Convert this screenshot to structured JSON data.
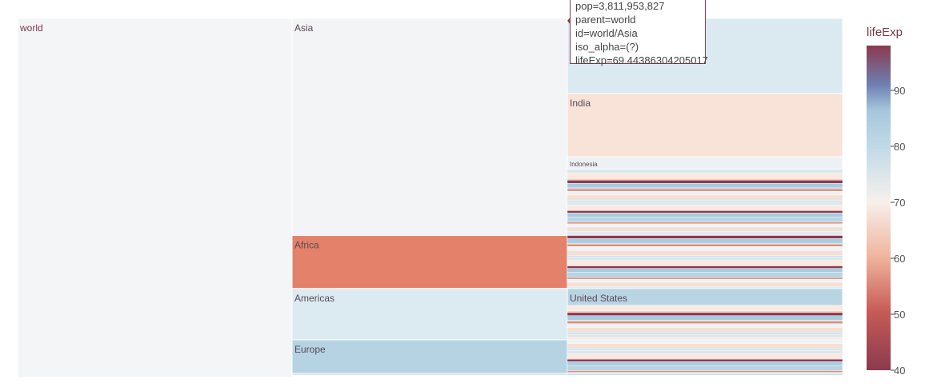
{
  "chart_data": {
    "type": "icicle",
    "color_by": "lifeExp",
    "colorscale": [
      "#8b3a4e",
      "#c9634f",
      "#f3c2ad",
      "#f4f1ef",
      "#d8e7ee",
      "#a3c8dc",
      "#6b7fb0",
      "#8b3a4e"
    ],
    "nodes": [
      {
        "id": "world",
        "label": "world",
        "value": 6.3,
        "lifeExp": 68.9,
        "color": "#f4f5f7"
      },
      {
        "id": "world/Asia",
        "label": "Asia",
        "parent": "world",
        "value": 3.81,
        "lifeExp": 69.4,
        "color": "#f2f4f6"
      },
      {
        "id": "world/Africa",
        "label": "Africa",
        "parent": "world",
        "value": 0.93,
        "lifeExp": 54.8,
        "color": "#e3816a"
      },
      {
        "id": "world/Americas",
        "label": "Americas",
        "parent": "world",
        "value": 0.9,
        "lifeExp": 75.4,
        "color": "#dceaf1"
      },
      {
        "id": "world/Europe",
        "label": "Europe",
        "parent": "world",
        "value": 0.59,
        "lifeExp": 77.6,
        "color": "#b5d3e3"
      },
      {
        "id": "world/Oceania",
        "label": "",
        "parent": "world",
        "value": 0.03,
        "lifeExp": 80.7,
        "color": "#c4dce8"
      },
      {
        "id": "world/Asia/China",
        "label": "",
        "parent": "world/Asia",
        "value": 1.32,
        "lifeExp": 73.0,
        "color": "#dbeaf1"
      },
      {
        "id": "world/Asia/India",
        "label": "India",
        "parent": "world/Asia",
        "value": 1.11,
        "lifeExp": 64.7,
        "color": "#f9e2d7"
      },
      {
        "id": "world/Asia/Indonesia",
        "label": "Indonesia",
        "parent": "world/Asia",
        "value": 0.22,
        "lifeExp": 70.7,
        "color": "#edf1f4"
      },
      {
        "id": "world/Americas/United States",
        "label": "United States",
        "parent": "world/Americas",
        "value": 0.3,
        "lifeExp": 78.2,
        "color": "#b9d5e4"
      }
    ],
    "colorbar": {
      "title": "lifeExp",
      "ticks": [
        40,
        50,
        60,
        70,
        80,
        90
      ],
      "range": [
        40,
        98
      ]
    },
    "hover": {
      "lines": [
        "pop=3,811,953,827",
        "parent=world",
        "id=world/Asia",
        "iso_alpha=(?)",
        "lifeExp=69.44386304205017"
      ]
    }
  }
}
